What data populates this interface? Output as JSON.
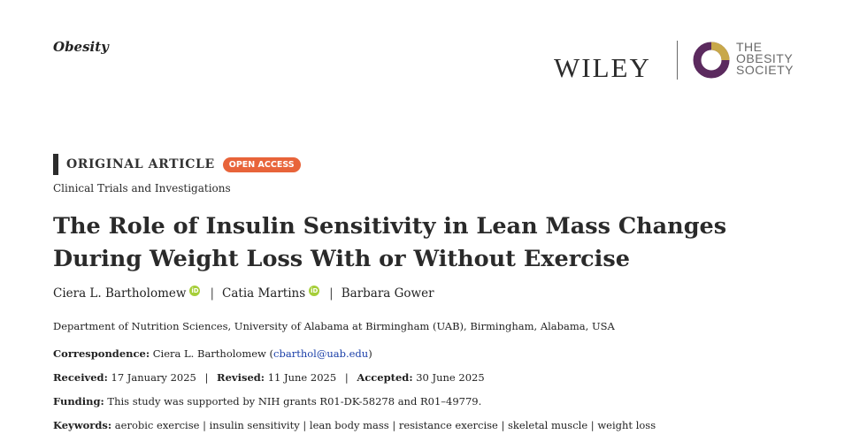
{
  "header": {
    "journal": "Obesity",
    "publisher": "WILEY",
    "society_lines": [
      "THE",
      "OBESITY",
      "SOCIETY"
    ]
  },
  "article": {
    "type": "ORIGINAL ARTICLE",
    "badge": "OPEN ACCESS",
    "section": "Clinical Trials and Investigations",
    "title": "The Role of Insulin Sensitivity in Lean Mass Changes During Weight Loss With or Without Exercise",
    "authors": [
      {
        "name": "Ciera L. Bartholomew",
        "orcid": true
      },
      {
        "name": "Catia Martins",
        "orcid": true
      },
      {
        "name": "Barbara Gower",
        "orcid": false
      }
    ],
    "orcid_glyph": "iD",
    "separator": "|",
    "affiliation": "Department of Nutrition Sciences, University of Alabama at Birmingham (UAB), Birmingham, Alabama, USA",
    "correspondence": {
      "label": "Correspondence:",
      "name": "Ciera L. Bartholomew (",
      "email": "cbarthol@uab.edu",
      "close": ")"
    },
    "dates": {
      "received_label": "Received:",
      "received": "17 January 2025",
      "revised_label": "Revised:",
      "revised": "11 June 2025",
      "accepted_label": "Accepted:",
      "accepted": "30 June 2025"
    },
    "funding": {
      "label": "Funding:",
      "text": "This study was supported by NIH grants R01-DK-58278 and R01–49779."
    },
    "keywords": {
      "label": "Keywords:",
      "text": "aerobic exercise | insulin sensitivity | lean body mass | resistance exercise | skeletal muscle | weight loss"
    }
  },
  "colors": {
    "open_access": "#e8643a",
    "society_purple": "#5b2a5e",
    "society_gold": "#c8a84a",
    "orcid": "#a6ce39",
    "email": "#1a3fa8"
  }
}
